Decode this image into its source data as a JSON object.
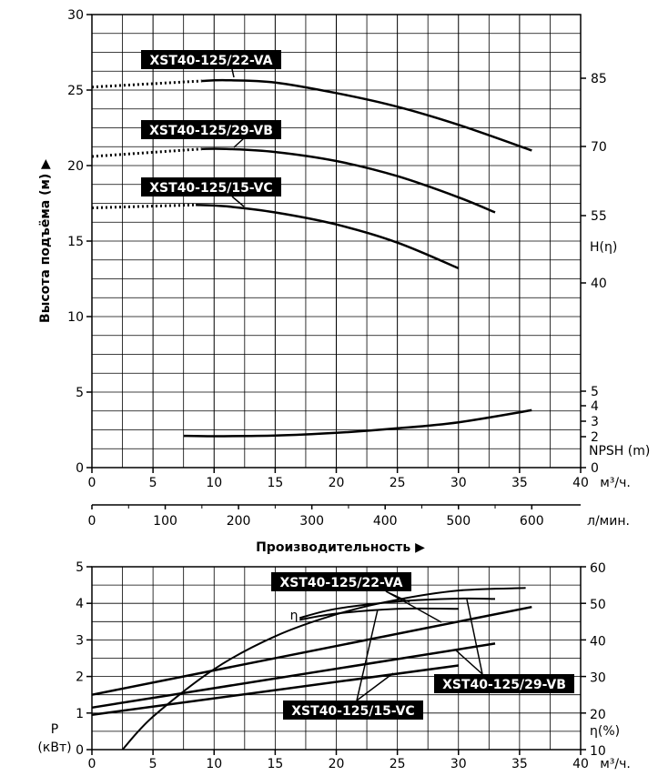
{
  "chart_data": [
    {
      "type": "line",
      "ylabel": "Высота подъёма (м) ▶",
      "x_ticks_m3": [
        "0",
        "5",
        "10",
        "15",
        "20",
        "25",
        "30",
        "35",
        "40"
      ],
      "x_unit_m3": "м³/ч.",
      "x_ticks_lmin": [
        "0",
        "100",
        "200",
        "300",
        "400",
        "500",
        "600"
      ],
      "x_unit_lmin": "л/мин.",
      "xlabel": "Производительность ▶",
      "xlim": [
        0,
        40
      ],
      "ylim": [
        0,
        30
      ],
      "y_ticks": [
        "0",
        "5",
        "10",
        "15",
        "20",
        "25",
        "30"
      ],
      "right_eta_ticks": [
        "85",
        "70",
        "55",
        "40"
      ],
      "right_eta_label": "H(η)",
      "right_npsh_ticks": [
        "5",
        "4",
        "3",
        "2",
        "0"
      ],
      "right_npsh_label": "NPSH (m)",
      "series": [
        {
          "name": "XST40-125/22-VA",
          "dotted_x": [
            0,
            9
          ],
          "x": [
            9,
            11,
            15,
            20,
            25,
            30,
            36
          ],
          "y": [
            25.6,
            25.65,
            25.5,
            24.8,
            23.9,
            22.7,
            21.0
          ],
          "dotted_y": [
            25.2,
            25.6
          ]
        },
        {
          "name": "XST40-125/29-VB",
          "dotted_x": [
            0,
            9
          ],
          "x": [
            9,
            11,
            15,
            20,
            25,
            30,
            33
          ],
          "y": [
            21.1,
            21.1,
            20.9,
            20.3,
            19.3,
            17.9,
            16.9
          ],
          "dotted_y": [
            20.6,
            21.1
          ]
        },
        {
          "name": "XST40-125/15-VC",
          "dotted_x": [
            0,
            8.5
          ],
          "x": [
            8.5,
            11,
            15,
            20,
            25,
            30
          ],
          "y": [
            17.4,
            17.3,
            16.9,
            16.1,
            14.9,
            13.2
          ],
          "dotted_y": [
            17.2,
            17.4
          ]
        },
        {
          "name": "NPSH",
          "x": [
            7.5,
            10,
            15,
            20,
            25,
            30,
            36
          ],
          "y": [
            2.1,
            2.08,
            2.12,
            2.3,
            2.6,
            3.0,
            3.8
          ]
        }
      ],
      "curve_labels": [
        "XST40-125/22-VA",
        "XST40-125/29-VB",
        "XST40-125/15-VC"
      ]
    },
    {
      "type": "line",
      "ylabel_left": "P (кВт)",
      "ylabel_right": "η(%)",
      "x_ticks": [
        "0",
        "5",
        "10",
        "15",
        "20",
        "25",
        "30",
        "35",
        "40"
      ],
      "x_unit": "м³/ч.",
      "xlim": [
        0,
        40
      ],
      "ylim": [
        0,
        5
      ],
      "y_ticks": [
        "0",
        "1",
        "2",
        "3",
        "4",
        "5"
      ],
      "eta_ticks": [
        "10",
        "20",
        "30",
        "40",
        "50",
        "60"
      ],
      "eta_label": "η",
      "curve_labels": [
        "XST40-125/22-VA",
        "XST40-125/29-VB",
        "XST40-125/15-VC"
      ],
      "series": [
        {
          "name": "η XST40-125/22-VA",
          "x": [
            2.5,
            5,
            10,
            15,
            20,
            25,
            30,
            35.5
          ],
          "y": [
            0,
            0.9,
            2.2,
            3.1,
            3.7,
            4.1,
            4.35,
            4.42
          ]
        },
        {
          "name": "η XST40-125/29-VB",
          "x": [
            17,
            20,
            25,
            30,
            33
          ],
          "y": [
            3.6,
            3.85,
            4.05,
            4.13,
            4.12
          ]
        },
        {
          "name": "η XST40-125/15-VC",
          "x": [
            17,
            20,
            25,
            30
          ],
          "y": [
            3.55,
            3.72,
            3.85,
            3.85
          ]
        },
        {
          "name": "P XST40-125/22-VA",
          "x": [
            0,
            36
          ],
          "y": [
            1.5,
            3.9
          ]
        },
        {
          "name": "P XST40-125/29-VB",
          "x": [
            0,
            33
          ],
          "y": [
            1.15,
            2.9
          ]
        },
        {
          "name": "P XST40-125/15-VC",
          "x": [
            0,
            30
          ],
          "y": [
            0.95,
            2.3
          ]
        }
      ]
    }
  ]
}
